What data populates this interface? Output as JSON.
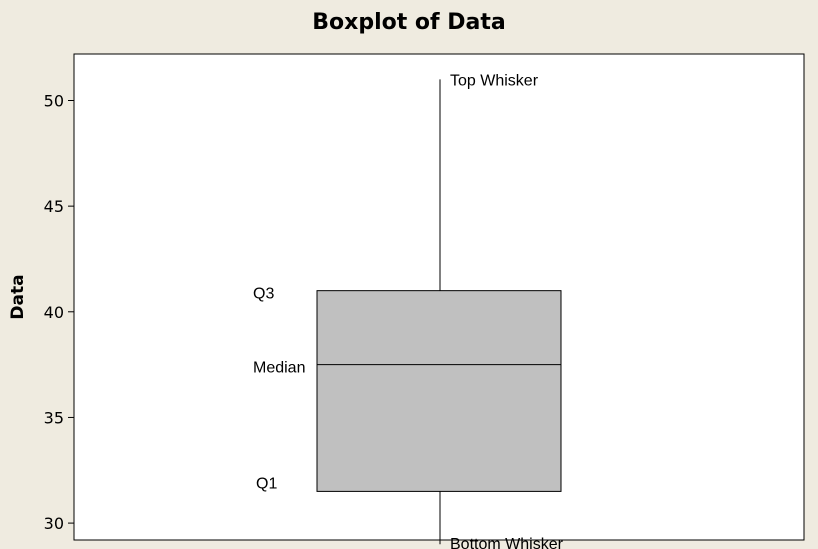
{
  "chart_data": {
    "type": "box",
    "title": "Boxplot of Data",
    "xlabel": "",
    "ylabel": "Data",
    "ylim": [
      29.2,
      52.2
    ],
    "yticks": [
      30,
      35,
      40,
      45,
      50
    ],
    "grid": false,
    "box": {
      "whisker_low": 29,
      "q1": 31.5,
      "median": 37.5,
      "q3": 41,
      "whisker_high": 51
    },
    "annotations": [
      {
        "text": "Top Whisker",
        "anchor": "whisker_high"
      },
      {
        "text": "Q3",
        "anchor": "q3"
      },
      {
        "text": "Median",
        "anchor": "median"
      },
      {
        "text": "Q1",
        "anchor": "q1"
      },
      {
        "text": "Bottom Whisker",
        "anchor": "whisker_low"
      }
    ],
    "colors": {
      "box_fill": "#c0c0c0",
      "plot_bg": "#ffffff",
      "page_bg": "#efebe0",
      "line": "#000000"
    }
  }
}
